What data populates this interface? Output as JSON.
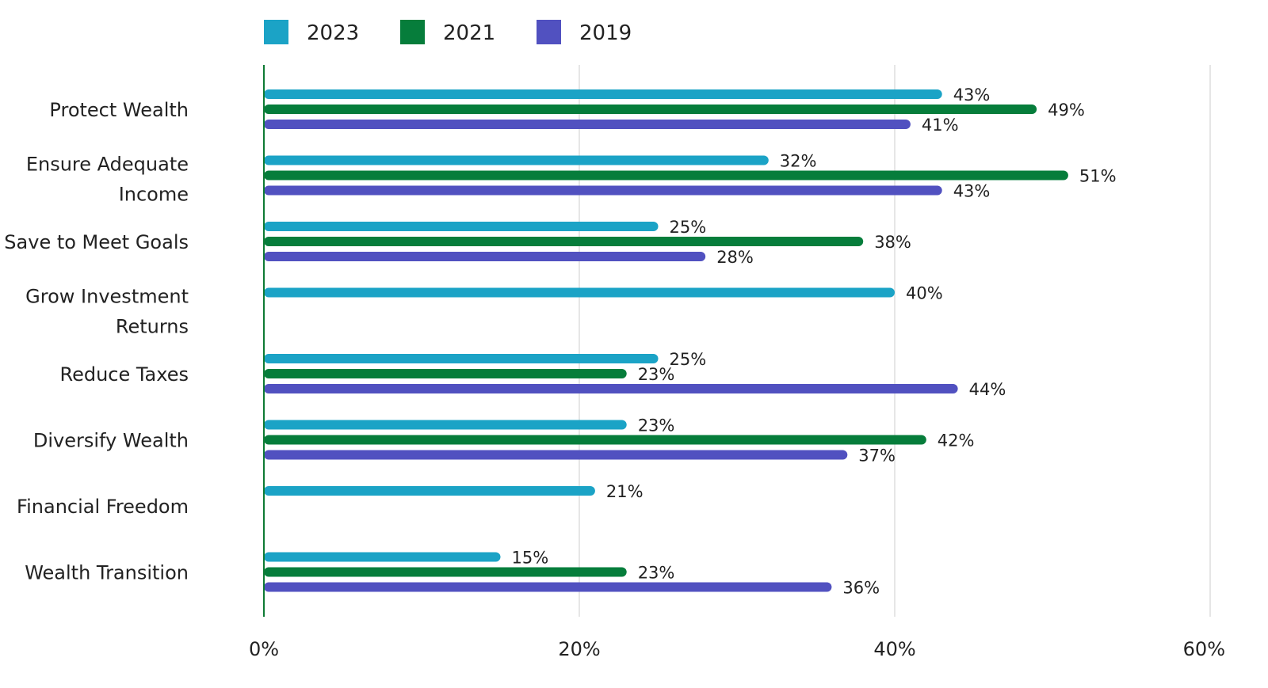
{
  "chart_data": {
    "type": "bar",
    "orientation": "horizontal",
    "title": "",
    "xlabel": "",
    "ylabel": "",
    "xlim": [
      0,
      60
    ],
    "x_ticks": [
      0,
      20,
      40,
      60
    ],
    "x_tick_labels": [
      "0%",
      "20%",
      "40%",
      "60%"
    ],
    "grid": "vertical",
    "legend_position": "top",
    "categories": [
      [
        "Protect Wealth"
      ],
      [
        "Ensure Adequate",
        "Income"
      ],
      [
        "Save to Meet Goals"
      ],
      [
        "Grow Investment",
        "Returns"
      ],
      [
        "Reduce Taxes"
      ],
      [
        "Diversify Wealth"
      ],
      [
        "Financial Freedom"
      ],
      [
        "Wealth Transition"
      ]
    ],
    "series": [
      {
        "name": "2023",
        "color": "#1BA3C6",
        "values": [
          43,
          32,
          25,
          40,
          25,
          23,
          21,
          15
        ],
        "labels": [
          "43%",
          "32%",
          "25%",
          "40%",
          "25%",
          "23%",
          "21%",
          "15%"
        ]
      },
      {
        "name": "2021",
        "color": "#067D3B",
        "values": [
          49,
          51,
          38,
          null,
          23,
          42,
          null,
          23
        ],
        "labels": [
          "49%",
          "51%",
          "38%",
          null,
          "23%",
          "42%",
          null,
          "23%"
        ]
      },
      {
        "name": "2019",
        "color": "#5151C0",
        "values": [
          41,
          43,
          28,
          null,
          44,
          37,
          null,
          36
        ],
        "labels": [
          "41%",
          "43%",
          "28%",
          null,
          "44%",
          "37%",
          null,
          "36%"
        ]
      }
    ],
    "axis_color": "#0E7A34",
    "grid_color": "#E6E6E6"
  }
}
